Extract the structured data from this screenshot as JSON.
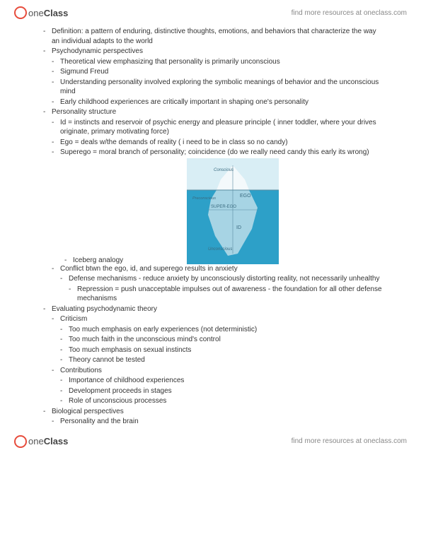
{
  "brand": {
    "one": "one",
    "class": "Class",
    "tagline": "find more resources at oneclass.com"
  },
  "notes": {
    "l1": [
      {
        "text": "Definition: a pattern of enduring, distinctive thoughts, emotions, and behaviors that characterize the way an individual adapts to the world"
      },
      {
        "text": "Psychodynamic perspectives",
        "children": [
          {
            "text": "Theoretical view emphasizing that personality is primarily unconscious"
          },
          {
            "text": "Sigmund Freud"
          },
          {
            "text": "Understanding personality involved exploring the symbolic meanings of behavior and the unconscious mind"
          },
          {
            "text": "Early childhood experiences are critically important in shaping one's personality"
          }
        ]
      },
      {
        "text": "Personality structure",
        "children": [
          {
            "text": "Id = instincts and reservoir of psychic energy and pleasure principle ( inner toddler, where your drives originate, primary motivating force)"
          },
          {
            "text": "Ego = deals w/the demands of reality  ( i need to be in class so no candy)"
          },
          {
            "text": "Superego = moral branch of personality; coincidence (do we really need candy this early its wrong)"
          }
        ]
      }
    ],
    "iceberg_caption": "Iceberg analogy",
    "l2_after": [
      {
        "text": "Conflict btwn the ego, id, and superego results in anxiety",
        "children": [
          {
            "text": "Defense mechanisms - reduce anxiety by unconsciously distorting reality, not necessarily unhealthy",
            "children": [
              {
                "text": "Repression = push unacceptable impulses out of awareness - the foundation for all other defense mechanisms"
              }
            ]
          }
        ]
      }
    ],
    "l1_bottom": [
      {
        "text": "Evaluating psychodynamic theory",
        "children": [
          {
            "text": "Criticism",
            "children": [
              {
                "text": "Too much emphasis on early experiences (not deterministic)"
              },
              {
                "text": "Too much faith in the unconscious mind's control"
              },
              {
                "text": "Too much emphasis on sexual instincts"
              },
              {
                "text": "Theory cannot be tested"
              }
            ]
          },
          {
            "text": "Contributions",
            "children": [
              {
                "text": "Importance of childhood experiences"
              },
              {
                "text": "Development proceeds in stages"
              },
              {
                "text": "Role of unconscious processes"
              }
            ]
          }
        ]
      },
      {
        "text": "Biological perspectives",
        "children": [
          {
            "text": "Personality and the brain"
          }
        ]
      }
    ]
  },
  "iceberg": {
    "labels": {
      "conscious": "Conscious",
      "preconscious": "Preconscious",
      "unconscious": "Unconscious",
      "ego": "EGO",
      "superego": "SUPER-EGO",
      "id": "ID"
    },
    "colors": {
      "sky": "#d9eef5",
      "water": "#2da0c8",
      "ice_above": "#f4f9fb",
      "ice_below": "#a7d4e4",
      "outline": "#6aa8bf",
      "divider": "#5a8ca1",
      "label": "#3a6b80"
    }
  }
}
